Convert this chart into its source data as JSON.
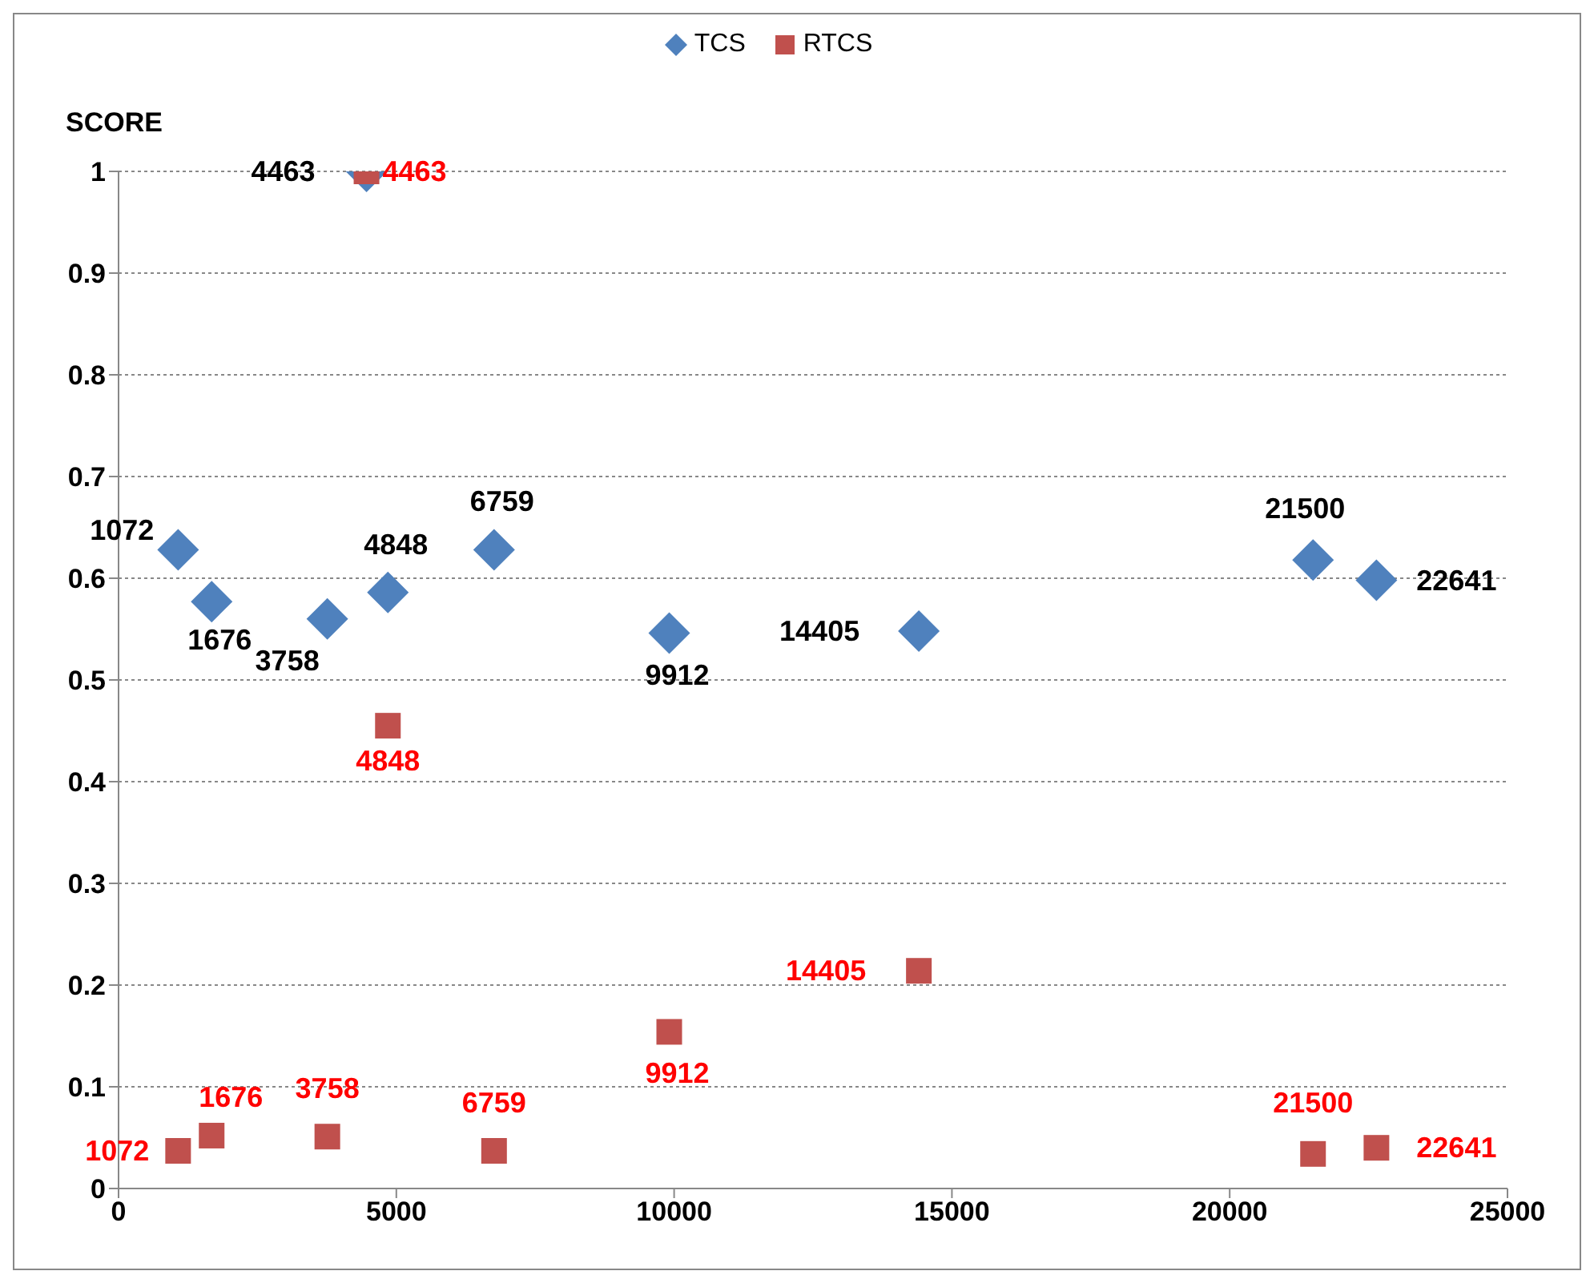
{
  "chart_data": {
    "type": "scatter",
    "ylabel": "SCORE",
    "xlim": [
      0,
      25000
    ],
    "xticks": [
      0,
      5000,
      10000,
      15000,
      20000,
      25000
    ],
    "ylim": [
      0,
      1
    ],
    "yticks": [
      0,
      0.1,
      0.2,
      0.3,
      0.4,
      0.5,
      0.6,
      0.7,
      0.8,
      0.9,
      1
    ],
    "grid": "y",
    "legend": "top",
    "x": [
      1072,
      1676,
      3758,
      4463,
      4848,
      6759,
      9912,
      14405,
      21500,
      22641
    ],
    "series": [
      {
        "name": "TCS",
        "color": "#4f81bd",
        "marker": "diamond",
        "values": [
          0.628,
          0.577,
          0.56,
          1.0,
          0.586,
          0.628,
          0.546,
          0.548,
          0.618,
          0.598
        ]
      },
      {
        "name": "RTCS",
        "color": "#c0504d",
        "marker": "square",
        "values": [
          0.037,
          0.052,
          0.051,
          1.0,
          0.455,
          0.037,
          0.154,
          0.214,
          0.034,
          0.04
        ]
      }
    ],
    "annotations": [
      {
        "text": "1072",
        "x": 1072,
        "y": 0.628
      },
      {
        "text": "1676",
        "x": 1676,
        "y": 0.577
      },
      {
        "text": "3758",
        "x": 3758,
        "y": 0.56
      },
      {
        "text": "4463",
        "x": 4463,
        "y": 1.0
      },
      {
        "text": "4848",
        "x": 4848,
        "y": 0.586
      },
      {
        "text": "6759",
        "x": 6759,
        "y": 0.628
      },
      {
        "text": "9912",
        "x": 9912,
        "y": 0.546
      },
      {
        "text": "14405",
        "x": 14405,
        "y": 0.548
      },
      {
        "text": "21500",
        "x": 21500,
        "y": 0.618
      },
      {
        "text": "22641",
        "x": 22641,
        "y": 0.598
      },
      {
        "text": "1072",
        "x": 1072,
        "y": 0.037
      },
      {
        "text": "1676",
        "x": 1676,
        "y": 0.052
      },
      {
        "text": "3758",
        "x": 3758,
        "y": 0.051
      },
      {
        "text": "4463",
        "x": 4463,
        "y": 1.0
      },
      {
        "text": "4848",
        "x": 4848,
        "y": 0.455
      },
      {
        "text": "6759",
        "x": 6759,
        "y": 0.037
      },
      {
        "text": "9912",
        "x": 9912,
        "y": 0.154
      },
      {
        "text": "14405",
        "x": 14405,
        "y": 0.214
      },
      {
        "text": "21500",
        "x": 21500,
        "y": 0.034
      },
      {
        "text": "22641",
        "x": 22641,
        "y": 0.04
      }
    ]
  }
}
